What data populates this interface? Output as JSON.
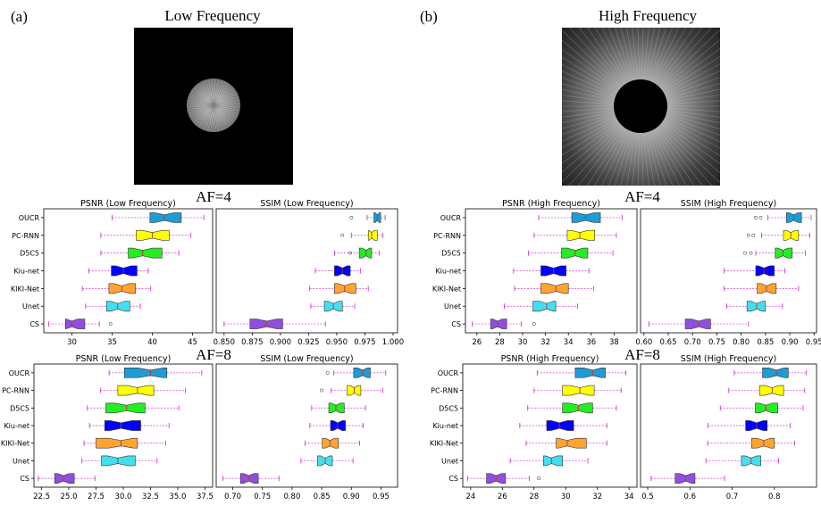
{
  "figure": {
    "panel_labels": [
      "(a)",
      "(b)"
    ],
    "image_titles": [
      "Low Frequency",
      "High Frequency"
    ],
    "af_labels": [
      "AF=4",
      "AF=8"
    ]
  },
  "chart_data": [
    {
      "type": "box",
      "title": "PSNR (Low Frequency)",
      "xlabel": "",
      "ylabel": "",
      "categories": [
        "OUCR",
        "PC-RNN",
        "D5C5",
        "Kiu-net",
        "KIKI-Net",
        "Unet",
        "CS"
      ],
      "xlim": [
        26.5,
        47.5
      ],
      "xticks": [
        30,
        35,
        40,
        45
      ],
      "stats": [
        {
          "whislo": 35.0,
          "q1": 39.7,
          "med": 41.5,
          "q3": 43.6,
          "whishi": 46.4,
          "fliers": []
        },
        {
          "whislo": 33.6,
          "q1": 38.0,
          "med": 40.0,
          "q3": 42.1,
          "whishi": 44.8,
          "fliers": []
        },
        {
          "whislo": 33.6,
          "q1": 37.0,
          "med": 38.8,
          "q3": 41.2,
          "whishi": 43.3,
          "fliers": []
        },
        {
          "whislo": 32.1,
          "q1": 34.9,
          "med": 36.4,
          "q3": 38.1,
          "whishi": 39.5,
          "fliers": []
        },
        {
          "whislo": 31.3,
          "q1": 34.6,
          "med": 36.2,
          "q3": 37.9,
          "whishi": 39.8,
          "fliers": []
        },
        {
          "whislo": 31.7,
          "q1": 34.3,
          "med": 35.7,
          "q3": 37.2,
          "whishi": 38.5,
          "fliers": []
        },
        {
          "whislo": 27.1,
          "q1": 29.2,
          "med": 30.0,
          "q3": 31.6,
          "whishi": 33.4,
          "fliers": [
            34.8
          ]
        }
      ]
    },
    {
      "type": "box",
      "title": "SSIM (Low Frequency)",
      "xlabel": "",
      "ylabel": "",
      "categories": [
        "OUCR",
        "PC-RNN",
        "D5C5",
        "Kiu-net",
        "KIKI-Net",
        "Unet",
        "CS"
      ],
      "xlim": [
        0.843,
        1.004
      ],
      "xticks": [
        0.85,
        0.875,
        0.9,
        0.925,
        0.95,
        0.975,
        1.0
      ],
      "tick_labels": [
        "0.850",
        "0.875",
        "0.900",
        "0.925",
        "0.950",
        "0.975",
        "1.000"
      ],
      "stats": [
        {
          "whislo": 0.977,
          "q1": 0.983,
          "med": 0.986,
          "q3": 0.989,
          "whishi": 0.993,
          "fliers": [
            0.963
          ]
        },
        {
          "whislo": 0.963,
          "q1": 0.978,
          "med": 0.981,
          "q3": 0.986,
          "whishi": 0.991,
          "fliers": [
            0.955
          ]
        },
        {
          "whislo": 0.948,
          "q1": 0.97,
          "med": 0.976,
          "q3": 0.981,
          "whishi": 0.988,
          "fliers": [
            0.962
          ]
        },
        {
          "whislo": 0.931,
          "q1": 0.948,
          "med": 0.955,
          "q3": 0.962,
          "whishi": 0.971,
          "fliers": []
        },
        {
          "whislo": 0.926,
          "q1": 0.948,
          "med": 0.957,
          "q3": 0.967,
          "whishi": 0.978,
          "fliers": []
        },
        {
          "whislo": 0.927,
          "q1": 0.939,
          "med": 0.947,
          "q3": 0.955,
          "whishi": 0.966,
          "fliers": []
        },
        {
          "whislo": 0.85,
          "q1": 0.873,
          "med": 0.888,
          "q3": 0.902,
          "whishi": 0.94,
          "fliers": []
        }
      ]
    },
    {
      "type": "box",
      "title": "PSNR (High Frequency)",
      "xlabel": "",
      "ylabel": "",
      "categories": [
        "OUCR",
        "PC-RNN",
        "D5C5",
        "Kiu-net",
        "KIKI-Net",
        "Unet",
        "CS"
      ],
      "xlim": [
        25.0,
        40.0
      ],
      "xticks": [
        26,
        28,
        30,
        32,
        34,
        36,
        38
      ],
      "stats": [
        {
          "whislo": 31.4,
          "q1": 34.3,
          "med": 35.5,
          "q3": 36.8,
          "whishi": 38.7,
          "fliers": []
        },
        {
          "whislo": 31.0,
          "q1": 33.9,
          "med": 35.0,
          "q3": 36.3,
          "whishi": 38.2,
          "fliers": []
        },
        {
          "whislo": 30.5,
          "q1": 33.4,
          "med": 34.6,
          "q3": 35.7,
          "whishi": 37.9,
          "fliers": []
        },
        {
          "whislo": 29.2,
          "q1": 31.6,
          "med": 32.7,
          "q3": 33.8,
          "whishi": 35.8,
          "fliers": []
        },
        {
          "whislo": 29.3,
          "q1": 31.6,
          "med": 32.9,
          "q3": 34.0,
          "whishi": 36.2,
          "fliers": []
        },
        {
          "whislo": 28.4,
          "q1": 30.9,
          "med": 32.1,
          "q3": 32.9,
          "whishi": 34.8,
          "fliers": []
        },
        {
          "whislo": 25.6,
          "q1": 27.2,
          "med": 27.8,
          "q3": 28.6,
          "whishi": 29.9,
          "fliers": [
            31.0
          ]
        }
      ]
    },
    {
      "type": "box",
      "title": "SSIM (High Frequency)",
      "xlabel": "",
      "ylabel": "",
      "categories": [
        "OUCR",
        "PC-RNN",
        "D5C5",
        "Kiu-net",
        "KIKI-Net",
        "Unet",
        "CS"
      ],
      "xlim": [
        0.593,
        0.955
      ],
      "xticks": [
        0.6,
        0.65,
        0.7,
        0.75,
        0.8,
        0.85,
        0.9,
        0.95
      ],
      "tick_labels": [
        "0.60",
        "0.65",
        "0.70",
        "0.75",
        "0.80",
        "0.85",
        "0.90",
        "0.95"
      ],
      "stats": [
        {
          "whislo": 0.855,
          "q1": 0.893,
          "med": 0.908,
          "q3": 0.924,
          "whishi": 0.944,
          "fliers": [
            0.83,
            0.84
          ]
        },
        {
          "whislo": 0.842,
          "q1": 0.887,
          "med": 0.902,
          "q3": 0.918,
          "whishi": 0.941,
          "fliers": [
            0.815,
            0.825
          ]
        },
        {
          "whislo": 0.83,
          "q1": 0.87,
          "med": 0.886,
          "q3": 0.905,
          "whishi": 0.932,
          "fliers": [
            0.808,
            0.82
          ]
        },
        {
          "whislo": 0.765,
          "q1": 0.83,
          "med": 0.847,
          "q3": 0.868,
          "whishi": 0.89,
          "fliers": []
        },
        {
          "whislo": 0.765,
          "q1": 0.833,
          "med": 0.852,
          "q3": 0.872,
          "whishi": 0.918,
          "fliers": []
        },
        {
          "whislo": 0.77,
          "q1": 0.812,
          "med": 0.832,
          "q3": 0.85,
          "whishi": 0.885,
          "fliers": []
        },
        {
          "whislo": 0.61,
          "q1": 0.685,
          "med": 0.713,
          "q3": 0.737,
          "whishi": 0.815,
          "fliers": []
        }
      ]
    },
    {
      "type": "box",
      "title": "PSNR (Low Frequency)",
      "xlabel": "",
      "ylabel": "",
      "categories": [
        "OUCR",
        "PC-RNN",
        "D5C5",
        "Kiu-net",
        "KIKI-Net",
        "Unet",
        "CS"
      ],
      "xlim": [
        21.8,
        38.2
      ],
      "xticks": [
        22.5,
        25.0,
        27.5,
        30.0,
        32.5,
        35.0,
        37.5
      ],
      "tick_labels": [
        "22.5",
        "25.0",
        "27.5",
        "30.0",
        "32.5",
        "35.0",
        "37.5"
      ],
      "stats": [
        {
          "whislo": 28.7,
          "q1": 30.1,
          "med": 32.5,
          "q3": 34.0,
          "whishi": 37.2,
          "fliers": []
        },
        {
          "whislo": 27.9,
          "q1": 29.5,
          "med": 31.3,
          "q3": 32.8,
          "whishi": 35.7,
          "fliers": []
        },
        {
          "whislo": 26.7,
          "q1": 28.4,
          "med": 30.3,
          "q3": 32.0,
          "whishi": 35.1,
          "fliers": []
        },
        {
          "whislo": 26.9,
          "q1": 28.3,
          "med": 29.8,
          "q3": 31.6,
          "whishi": 34.2,
          "fliers": []
        },
        {
          "whislo": 26.4,
          "q1": 27.5,
          "med": 29.8,
          "q3": 31.3,
          "whishi": 33.9,
          "fliers": []
        },
        {
          "whislo": 26.2,
          "q1": 28.0,
          "med": 29.5,
          "q3": 31.1,
          "whishi": 33.1,
          "fliers": []
        },
        {
          "whislo": 22.2,
          "q1": 23.7,
          "med": 24.5,
          "q3": 25.5,
          "whishi": 27.4,
          "fliers": []
        }
      ]
    },
    {
      "type": "box",
      "title": "SSIM (Low Frequency)",
      "xlabel": "",
      "ylabel": "",
      "categories": [
        "OUCR",
        "PC-RNN",
        "D5C5",
        "Kiu-net",
        "KIKI-Net",
        "Unet",
        "CS"
      ],
      "xlim": [
        0.672,
        0.978
      ],
      "xticks": [
        0.7,
        0.75,
        0.8,
        0.85,
        0.9,
        0.95
      ],
      "tick_labels": [
        "0.70",
        "0.75",
        "0.80",
        "0.85",
        "0.90",
        "0.95"
      ],
      "stats": [
        {
          "whislo": 0.87,
          "q1": 0.904,
          "med": 0.919,
          "q3": 0.932,
          "whishi": 0.958,
          "fliers": [
            0.86
          ]
        },
        {
          "whislo": 0.866,
          "q1": 0.893,
          "med": 0.905,
          "q3": 0.916,
          "whishi": 0.953,
          "fliers": [
            0.85
          ]
        },
        {
          "whislo": 0.833,
          "q1": 0.862,
          "med": 0.874,
          "q3": 0.888,
          "whishi": 0.924,
          "fliers": []
        },
        {
          "whislo": 0.83,
          "q1": 0.865,
          "med": 0.877,
          "q3": 0.89,
          "whishi": 0.92,
          "fliers": []
        },
        {
          "whislo": 0.822,
          "q1": 0.851,
          "med": 0.864,
          "q3": 0.878,
          "whishi": 0.914,
          "fliers": []
        },
        {
          "whislo": 0.815,
          "q1": 0.843,
          "med": 0.856,
          "q3": 0.868,
          "whishi": 0.903,
          "fliers": []
        },
        {
          "whislo": 0.683,
          "q1": 0.713,
          "med": 0.727,
          "q3": 0.743,
          "whishi": 0.778,
          "fliers": []
        }
      ]
    },
    {
      "type": "box",
      "title": "PSNR (High Frequency)",
      "xlabel": "",
      "ylabel": "",
      "categories": [
        "OUCR",
        "PC-RNN",
        "D5C5",
        "Kiu-net",
        "KIKI-Net",
        "Unet",
        "CS"
      ],
      "xlim": [
        23.5,
        34.5
      ],
      "xticks": [
        24,
        26,
        28,
        30,
        32,
        34
      ],
      "stats": [
        {
          "whislo": 28.2,
          "q1": 30.6,
          "med": 31.7,
          "q3": 32.5,
          "whishi": 33.8,
          "fliers": []
        },
        {
          "whislo": 28.0,
          "q1": 29.8,
          "med": 30.9,
          "q3": 31.8,
          "whishi": 33.5,
          "fliers": []
        },
        {
          "whislo": 27.6,
          "q1": 29.8,
          "med": 30.8,
          "q3": 31.7,
          "whishi": 33.2,
          "fliers": []
        },
        {
          "whislo": 27.1,
          "q1": 28.8,
          "med": 29.6,
          "q3": 30.5,
          "whishi": 32.6,
          "fliers": []
        },
        {
          "whislo": 27.5,
          "q1": 29.4,
          "med": 30.1,
          "q3": 31.3,
          "whishi": 32.6,
          "fliers": []
        },
        {
          "whislo": 26.5,
          "q1": 28.6,
          "med": 29.1,
          "q3": 29.8,
          "whishi": 31.4,
          "fliers": []
        },
        {
          "whislo": 23.8,
          "q1": 25.0,
          "med": 25.6,
          "q3": 26.2,
          "whishi": 27.7,
          "fliers": [
            28.3
          ]
        }
      ]
    },
    {
      "type": "box",
      "title": "SSIM (High Frequency)",
      "xlabel": "",
      "ylabel": "",
      "categories": [
        "OUCR",
        "PC-RNN",
        "D5C5",
        "Kiu-net",
        "KIKI-Net",
        "Unet",
        "CS"
      ],
      "xlim": [
        0.483,
        0.9
      ],
      "xticks": [
        0.5,
        0.6,
        0.7,
        0.8
      ],
      "tick_labels": [
        "0.5",
        "0.6",
        "0.7",
        "0.8"
      ],
      "stats": [
        {
          "whislo": 0.705,
          "q1": 0.772,
          "med": 0.805,
          "q3": 0.833,
          "whishi": 0.876,
          "fliers": []
        },
        {
          "whislo": 0.692,
          "q1": 0.765,
          "med": 0.795,
          "q3": 0.822,
          "whishi": 0.872,
          "fliers": []
        },
        {
          "whislo": 0.672,
          "q1": 0.755,
          "med": 0.78,
          "q3": 0.808,
          "whishi": 0.868,
          "fliers": []
        },
        {
          "whislo": 0.643,
          "q1": 0.732,
          "med": 0.758,
          "q3": 0.783,
          "whishi": 0.838,
          "fliers": []
        },
        {
          "whislo": 0.642,
          "q1": 0.746,
          "med": 0.775,
          "q3": 0.8,
          "whishi": 0.848,
          "fliers": []
        },
        {
          "whislo": 0.638,
          "q1": 0.722,
          "med": 0.745,
          "q3": 0.768,
          "whishi": 0.81,
          "fliers": []
        },
        {
          "whislo": 0.508,
          "q1": 0.565,
          "med": 0.59,
          "q3": 0.612,
          "whishi": 0.682,
          "fliers": []
        }
      ]
    }
  ],
  "series_colors": [
    "#1f9bd6",
    "#ffff00",
    "#22ee22",
    "#0000ff",
    "#ffa431",
    "#44dfee",
    "#8f4fde"
  ]
}
